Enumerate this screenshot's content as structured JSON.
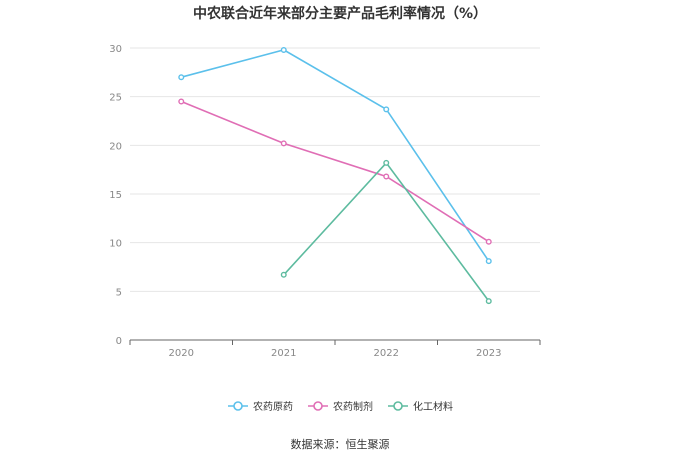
{
  "title": "中农联合近年来部分主要产品毛利率情况（%）",
  "source": "数据来源：恒生聚源",
  "chart_data": {
    "type": "line",
    "title": "中农联合近年来部分主要产品毛利率情况（%）",
    "categories": [
      "2020",
      "2021",
      "2022",
      "2023"
    ],
    "yticks": [
      "0",
      "5",
      "10",
      "15",
      "20",
      "25",
      "30"
    ],
    "ylim": [
      0,
      30
    ],
    "grid": true,
    "legend_position": "bottom",
    "series": [
      {
        "name": "农药原药",
        "color": "#5bc0eb",
        "values": [
          27.0,
          29.8,
          23.7,
          8.1
        ]
      },
      {
        "name": "农药制剂",
        "color": "#e06eb5",
        "values": [
          24.5,
          20.2,
          16.8,
          10.1
        ]
      },
      {
        "name": "化工材料",
        "color": "#5dbb9f",
        "values": [
          null,
          6.7,
          18.2,
          4.0
        ]
      }
    ]
  }
}
